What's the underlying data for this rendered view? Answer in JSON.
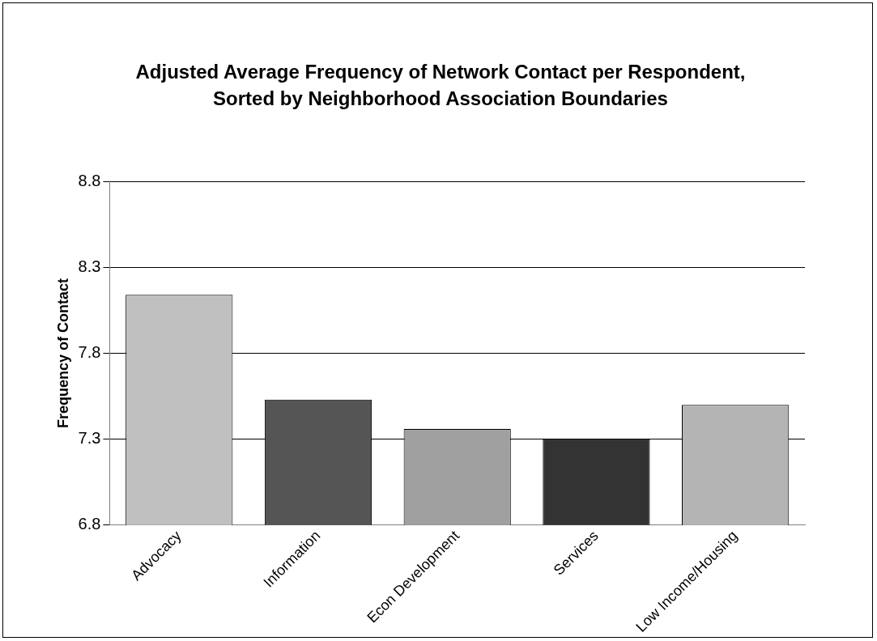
{
  "chart_data": {
    "type": "bar",
    "title": "Adjusted Average Frequency of Network Contact per Respondent, Sorted by Neighborhood Association Boundaries",
    "ylabel": "Frequency of Contact",
    "categories": [
      "Advocacy",
      "Information",
      "Econ Development",
      "Services",
      "Low Income/Housing"
    ],
    "values": [
      8.14,
      7.53,
      7.36,
      7.3,
      7.5
    ],
    "colors": [
      "#c0c0c0",
      "#555555",
      "#a0a0a0",
      "#333333",
      "#b4b4b4"
    ],
    "ylim": [
      6.8,
      8.8
    ],
    "yticks": [
      6.8,
      7.3,
      7.8,
      8.3,
      8.8
    ],
    "grid": "y",
    "legend": false
  }
}
